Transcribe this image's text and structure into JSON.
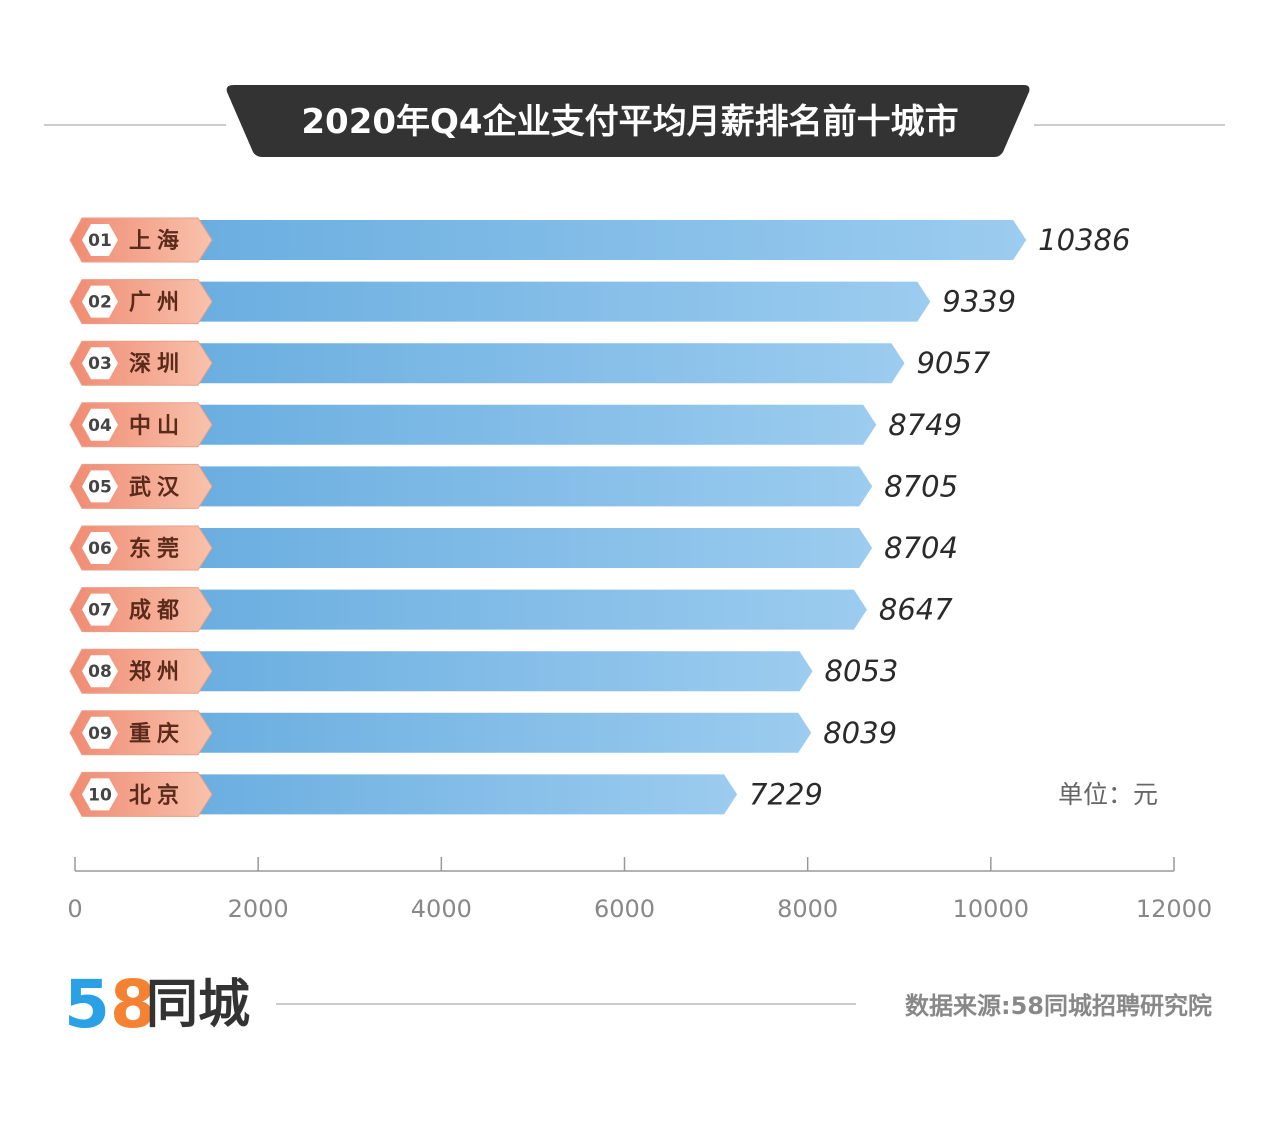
{
  "chart_data": {
    "type": "bar",
    "orientation": "horizontal",
    "title": "2020年Q4企业支付平均月薪排名前十城市",
    "unit_label": "单位：元",
    "ranks": [
      "01",
      "02",
      "03",
      "04",
      "05",
      "06",
      "07",
      "08",
      "09",
      "10"
    ],
    "categories": [
      "上海",
      "广州",
      "深圳",
      "中山",
      "武汉",
      "东莞",
      "成都",
      "郑州",
      "重庆",
      "北京"
    ],
    "values": [
      10386,
      9339,
      9057,
      8749,
      8705,
      8704,
      8647,
      8053,
      8039,
      7229
    ],
    "xlim": [
      0,
      12000
    ],
    "xticks": [
      0,
      2000,
      4000,
      6000,
      8000,
      10000,
      12000
    ],
    "grid": false,
    "legend": "none"
  },
  "footer": {
    "logo_number": "58",
    "logo_text": "同城",
    "source": "数据来源:58同城招聘研究院"
  },
  "colors": {
    "title_bg": "#333333",
    "bar_start": "#6aaee0",
    "bar_end": "#9cccef",
    "label_start": "#f08a72",
    "label_end": "#f8c2ac",
    "logo_5_top": "#f1504a",
    "logo_5_bottom": "#2aa0e6",
    "logo_8_top": "#f7b51c",
    "logo_8_bottom": "#f58233"
  }
}
